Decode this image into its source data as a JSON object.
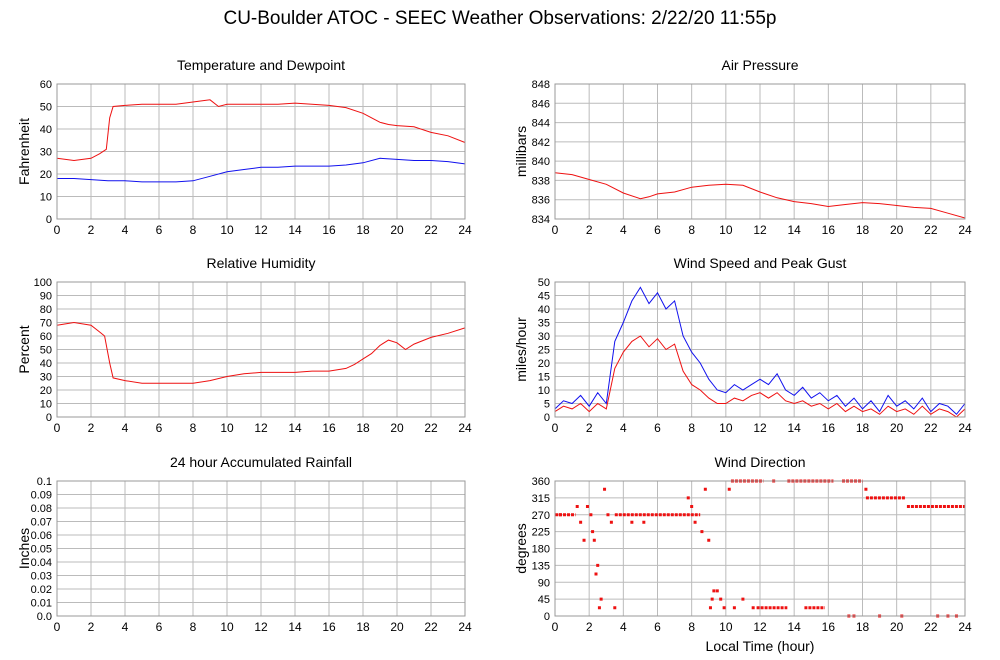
{
  "page": {
    "title": "CU-Boulder ATOC - SEEC Weather Observations: 2/22/20 11:55p",
    "shared_xlabel": "Local Time (hour)"
  },
  "colors": {
    "red": "#ee1111",
    "blue": "#1111ee",
    "grid": "#bbbbbb",
    "frame": "#999999"
  },
  "chart_data": [
    {
      "id": "temp",
      "type": "line",
      "title": "Temperature and Dewpoint",
      "xlabel": "",
      "ylabel": "Fahrenheit",
      "xlim": [
        0,
        24
      ],
      "ylim": [
        0,
        60
      ],
      "x_ticks": [
        0,
        2,
        4,
        6,
        8,
        10,
        12,
        14,
        16,
        18,
        20,
        22,
        24
      ],
      "y_ticks": [
        0,
        10,
        20,
        30,
        40,
        50,
        60
      ],
      "y_tick_labels": [
        "0",
        "10",
        "20",
        "30",
        "40",
        "50",
        "60"
      ],
      "grid": true,
      "series": [
        {
          "color": "red",
          "x": [
            0,
            1,
            2,
            2.5,
            2.9,
            3.1,
            3.3,
            4,
            5,
            6,
            7,
            8,
            8.5,
            9,
            9.5,
            10,
            11,
            12,
            13,
            14,
            15,
            16,
            17,
            18,
            18.5,
            19,
            19.5,
            20,
            21,
            22,
            23,
            24
          ],
          "y": [
            27,
            26,
            27,
            29,
            31,
            45,
            50,
            50.5,
            51,
            51,
            51,
            52,
            52.5,
            53,
            50,
            51,
            51,
            51,
            51,
            51.5,
            51,
            50.5,
            49.5,
            47,
            45,
            43,
            42,
            41.5,
            41,
            38.5,
            37,
            34
          ]
        },
        {
          "color": "blue",
          "x": [
            0,
            1,
            2,
            3,
            4,
            5,
            6,
            7,
            8,
            9,
            10,
            11,
            12,
            13,
            14,
            15,
            16,
            17,
            18,
            19,
            20,
            21,
            22,
            23,
            24
          ],
          "y": [
            18,
            18,
            17.5,
            17,
            17,
            16.5,
            16.5,
            16.5,
            17,
            19,
            21,
            22,
            23,
            23,
            23.5,
            23.5,
            23.5,
            24,
            25,
            27,
            26.5,
            26,
            26,
            25.5,
            24.5
          ]
        }
      ]
    },
    {
      "id": "pressure",
      "type": "line",
      "title": "Air Pressure",
      "xlabel": "",
      "ylabel": "millibars",
      "xlim": [
        0,
        24
      ],
      "ylim": [
        834,
        848
      ],
      "x_ticks": [
        0,
        2,
        4,
        6,
        8,
        10,
        12,
        14,
        16,
        18,
        20,
        22,
        24
      ],
      "y_ticks": [
        834,
        836,
        838,
        840,
        842,
        844,
        846,
        848
      ],
      "y_tick_labels": [
        "834",
        "836",
        "838",
        "840",
        "842",
        "844",
        "846",
        "848"
      ],
      "grid": true,
      "series": [
        {
          "color": "red",
          "x": [
            0,
            1,
            2,
            3,
            4,
            5,
            5.5,
            6,
            7,
            8,
            9,
            10,
            11,
            12,
            13,
            14,
            15,
            16,
            17,
            18,
            19,
            20,
            21,
            22,
            23,
            24
          ],
          "y": [
            838.8,
            838.6,
            838.1,
            837.6,
            836.7,
            836.1,
            836.3,
            836.6,
            836.8,
            837.3,
            837.5,
            837.6,
            837.5,
            836.8,
            836.2,
            835.8,
            835.6,
            835.3,
            835.5,
            835.7,
            835.6,
            835.4,
            835.2,
            835.1,
            834.6,
            834.1
          ]
        }
      ]
    },
    {
      "id": "humidity",
      "type": "line",
      "title": "Relative Humidity",
      "xlabel": "",
      "ylabel": "Percent",
      "xlim": [
        0,
        24
      ],
      "ylim": [
        0,
        100
      ],
      "x_ticks": [
        0,
        2,
        4,
        6,
        8,
        10,
        12,
        14,
        16,
        18,
        20,
        22,
        24
      ],
      "y_ticks": [
        0,
        10,
        20,
        30,
        40,
        50,
        60,
        70,
        80,
        90,
        100
      ],
      "y_tick_labels": [
        "0",
        "10",
        "20",
        "30",
        "40",
        "50",
        "60",
        "70",
        "80",
        "90",
        "100"
      ],
      "grid": true,
      "series": [
        {
          "color": "red",
          "x": [
            0,
            0.5,
            1,
            1.5,
            2,
            2.5,
            2.8,
            3.1,
            3.3,
            4,
            5,
            6,
            7,
            8,
            9,
            10,
            11,
            12,
            13,
            14,
            15,
            16,
            17,
            17.5,
            18,
            18.5,
            19,
            19.5,
            20,
            20.5,
            21,
            22,
            23,
            24
          ],
          "y": [
            68,
            69,
            70,
            69,
            68,
            63,
            60,
            40,
            29,
            27,
            25,
            25,
            25,
            25,
            27,
            30,
            32,
            33,
            33,
            33,
            34,
            34,
            36,
            39,
            43,
            47,
            53,
            57,
            55,
            50,
            54,
            59,
            62,
            66
          ]
        }
      ]
    },
    {
      "id": "wind",
      "type": "line",
      "title": "Wind Speed and Peak Gust",
      "xlabel": "",
      "ylabel": "miles/hour",
      "xlim": [
        0,
        24
      ],
      "ylim": [
        0,
        50
      ],
      "x_ticks": [
        0,
        2,
        4,
        6,
        8,
        10,
        12,
        14,
        16,
        18,
        20,
        22,
        24
      ],
      "y_ticks": [
        0,
        5,
        10,
        15,
        20,
        25,
        30,
        35,
        40,
        45,
        50
      ],
      "y_tick_labels": [
        "0",
        "5",
        "10",
        "15",
        "20",
        "25",
        "30",
        "35",
        "40",
        "45",
        "50"
      ],
      "grid": true,
      "series": [
        {
          "color": "blue",
          "x": [
            0,
            0.5,
            1,
            1.5,
            2,
            2.5,
            3,
            3.5,
            4,
            4.5,
            5,
            5.5,
            6,
            6.5,
            7,
            7.5,
            8,
            8.5,
            9,
            9.5,
            10,
            10.5,
            11,
            11.5,
            12,
            12.5,
            13,
            13.5,
            14,
            14.5,
            15,
            15.5,
            16,
            16.5,
            17,
            17.5,
            18,
            18.5,
            19,
            19.5,
            20,
            20.5,
            21,
            21.5,
            22,
            22.5,
            23,
            23.5,
            24
          ],
          "y": [
            3,
            6,
            5,
            8,
            4,
            9,
            5,
            28,
            35,
            43,
            48,
            42,
            46,
            40,
            43,
            30,
            24,
            20,
            14,
            10,
            9,
            12,
            10,
            12,
            14,
            12,
            16,
            10,
            8,
            11,
            7,
            9,
            6,
            8,
            4,
            7,
            3,
            6,
            2,
            8,
            4,
            6,
            3,
            7,
            2,
            5,
            4,
            1,
            5
          ]
        },
        {
          "color": "red",
          "x": [
            0,
            0.5,
            1,
            1.5,
            2,
            2.5,
            3,
            3.5,
            4,
            4.5,
            5,
            5.5,
            6,
            6.5,
            7,
            7.5,
            8,
            8.5,
            9,
            9.5,
            10,
            10.5,
            11,
            11.5,
            12,
            12.5,
            13,
            13.5,
            14,
            14.5,
            15,
            15.5,
            16,
            16.5,
            17,
            17.5,
            18,
            18.5,
            19,
            19.5,
            20,
            20.5,
            21,
            21.5,
            22,
            22.5,
            23,
            23.5,
            24
          ],
          "y": [
            2,
            4,
            3,
            5,
            2,
            5,
            3,
            18,
            24,
            28,
            30,
            26,
            29,
            25,
            27,
            17,
            12,
            10,
            7,
            5,
            5,
            7,
            6,
            8,
            9,
            7,
            9,
            6,
            5,
            6,
            4,
            5,
            3,
            5,
            2,
            4,
            2,
            3,
            1,
            4,
            2,
            3,
            1,
            4,
            1,
            3,
            2,
            0,
            3
          ]
        }
      ]
    },
    {
      "id": "rain",
      "type": "line",
      "title": "24 hour Accumulated Rainfall",
      "xlabel": "",
      "ylabel": "Inches",
      "xlim": [
        0,
        24
      ],
      "ylim": [
        0,
        0.1
      ],
      "x_ticks": [
        0,
        2,
        4,
        6,
        8,
        10,
        12,
        14,
        16,
        18,
        20,
        22,
        24
      ],
      "y_ticks": [
        0,
        0.01,
        0.02,
        0.03,
        0.04,
        0.05,
        0.06,
        0.07,
        0.08,
        0.09,
        0.1
      ],
      "y_tick_labels": [
        "0.0",
        "0.01",
        "0.02",
        "0.03",
        "0.04",
        "0.05",
        "0.06",
        "0.07",
        "0.08",
        "0.09",
        "0.1"
      ],
      "grid": true,
      "series": [
        {
          "color": "red",
          "x": [
            0,
            24
          ],
          "y": [
            0,
            0
          ]
        }
      ]
    },
    {
      "id": "direction",
      "type": "scatter",
      "title": "Wind Direction",
      "xlabel": "Local Time (hour)",
      "ylabel": "degrees",
      "xlim": [
        0,
        24
      ],
      "ylim": [
        0,
        360
      ],
      "x_ticks": [
        0,
        2,
        4,
        6,
        8,
        10,
        12,
        14,
        16,
        18,
        20,
        22,
        24
      ],
      "y_ticks": [
        0,
        45,
        90,
        135,
        180,
        225,
        270,
        315,
        360
      ],
      "y_tick_labels": [
        "0",
        "45",
        "90",
        "135",
        "180",
        "225",
        "270",
        "315",
        "360"
      ],
      "grid": true,
      "segments": [
        {
          "x0": 0,
          "x1": 1.2,
          "y": 270
        },
        {
          "x0": 3.5,
          "x1": 8.5,
          "y": 270
        },
        {
          "x0": 10.3,
          "x1": 12.2,
          "y": 360
        },
        {
          "x0": 13.6,
          "x1": 16.3,
          "y": 360
        },
        {
          "x0": 16.8,
          "x1": 18,
          "y": 360
        },
        {
          "x0": 18.2,
          "x1": 20.5,
          "y": 315
        },
        {
          "x0": 20.6,
          "x1": 24,
          "y": 292
        },
        {
          "x0": 11.8,
          "x1": 13.6,
          "y": 22
        },
        {
          "x0": 14.6,
          "x1": 15.8,
          "y": 22
        }
      ],
      "points": [
        {
          "x": 0.3,
          "y": 270
        },
        {
          "x": 1.3,
          "y": 292
        },
        {
          "x": 1.5,
          "y": 250
        },
        {
          "x": 1.7,
          "y": 202
        },
        {
          "x": 1.9,
          "y": 292
        },
        {
          "x": 2.1,
          "y": 270
        },
        {
          "x": 2.2,
          "y": 225
        },
        {
          "x": 2.3,
          "y": 202
        },
        {
          "x": 2.4,
          "y": 112
        },
        {
          "x": 2.5,
          "y": 135
        },
        {
          "x": 2.6,
          "y": 22
        },
        {
          "x": 2.7,
          "y": 45
        },
        {
          "x": 2.9,
          "y": 338
        },
        {
          "x": 3.1,
          "y": 270
        },
        {
          "x": 3.3,
          "y": 250
        },
        {
          "x": 3.5,
          "y": 22
        },
        {
          "x": 4.5,
          "y": 250
        },
        {
          "x": 5.2,
          "y": 250
        },
        {
          "x": 7.8,
          "y": 315
        },
        {
          "x": 8.0,
          "y": 292
        },
        {
          "x": 8.2,
          "y": 250
        },
        {
          "x": 8.6,
          "y": 225
        },
        {
          "x": 8.8,
          "y": 338
        },
        {
          "x": 9.0,
          "y": 202
        },
        {
          "x": 9.1,
          "y": 22
        },
        {
          "x": 9.2,
          "y": 45
        },
        {
          "x": 9.3,
          "y": 67
        },
        {
          "x": 9.5,
          "y": 67
        },
        {
          "x": 9.7,
          "y": 45
        },
        {
          "x": 9.9,
          "y": 22
        },
        {
          "x": 10.2,
          "y": 338
        },
        {
          "x": 10.5,
          "y": 22
        },
        {
          "x": 11.0,
          "y": 45
        },
        {
          "x": 11.6,
          "y": 22
        },
        {
          "x": 12.8,
          "y": 360
        },
        {
          "x": 17.2,
          "y": 0
        },
        {
          "x": 17.5,
          "y": 0
        },
        {
          "x": 18.2,
          "y": 338
        },
        {
          "x": 19.0,
          "y": 0
        },
        {
          "x": 20.3,
          "y": 0
        },
        {
          "x": 22.4,
          "y": 0
        },
        {
          "x": 23.0,
          "y": 0
        },
        {
          "x": 23.5,
          "y": 0
        }
      ]
    }
  ]
}
